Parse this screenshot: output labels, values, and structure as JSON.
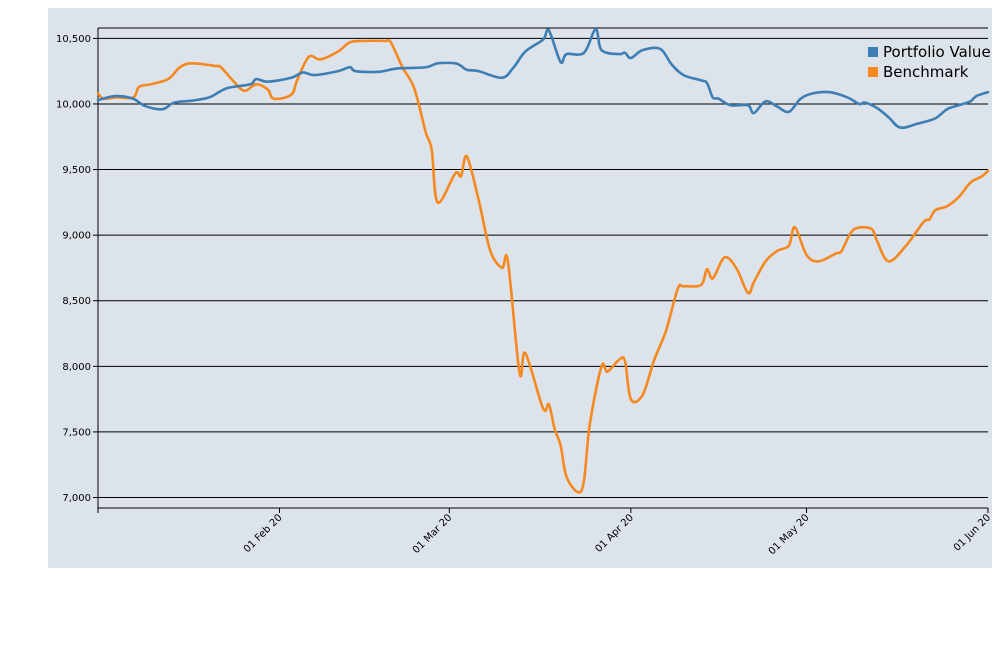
{
  "chart_data": {
    "type": "line",
    "x_type": "date",
    "ylim": [
      6920,
      10640
    ],
    "xlim": [
      "2020-01-01",
      "2020-06-01"
    ],
    "y_ticks": [
      7000,
      7500,
      8000,
      8500,
      9000,
      9500,
      10000,
      10500
    ],
    "y_tick_labels": [
      "7,000",
      "7,500",
      "8,000",
      "8,500",
      "9,000",
      "9,500",
      "10,000",
      "10,500"
    ],
    "x_ticks": [
      "2020-02-01",
      "2020-03-01",
      "2020-04-01",
      "2020-05-01",
      "2020-06-01"
    ],
    "x_tick_labels": [
      "01 Feb 20",
      "01 Mar 20",
      "01 Apr 20",
      "01 May 20",
      "01 Jun 20"
    ],
    "grid": "horizontal",
    "legend": "top-right",
    "colors": {
      "panel": "#dde3ea",
      "grid": "#000000"
    },
    "series": [
      {
        "name": "Portfolio Value",
        "color": "#3d7fb5",
        "points": [
          [
            "2020-01-01",
            10030
          ],
          [
            "2020-01-04",
            10060
          ],
          [
            "2020-01-07",
            10040
          ],
          [
            "2020-01-09",
            9985
          ],
          [
            "2020-01-12",
            9960
          ],
          [
            "2020-01-14",
            10010
          ],
          [
            "2020-01-17",
            10025
          ],
          [
            "2020-01-20",
            10050
          ],
          [
            "2020-01-23",
            10120
          ],
          [
            "2020-01-27",
            10150
          ],
          [
            "2020-01-28",
            10190
          ],
          [
            "2020-01-30",
            10170
          ],
          [
            "2020-02-03",
            10200
          ],
          [
            "2020-02-05",
            10240
          ],
          [
            "2020-02-07",
            10220
          ],
          [
            "2020-02-11",
            10250
          ],
          [
            "2020-02-13",
            10280
          ],
          [
            "2020-02-14",
            10250
          ],
          [
            "2020-02-18",
            10245
          ],
          [
            "2020-02-21",
            10270
          ],
          [
            "2020-02-26",
            10280
          ],
          [
            "2020-02-28",
            10310
          ],
          [
            "2020-03-02",
            10310
          ],
          [
            "2020-03-03",
            10290
          ],
          [
            "2020-03-04",
            10260
          ],
          [
            "2020-03-06",
            10250
          ],
          [
            "2020-03-10",
            10200
          ],
          [
            "2020-03-12",
            10280
          ],
          [
            "2020-03-14",
            10400
          ],
          [
            "2020-03-17",
            10490
          ],
          [
            "2020-03-18",
            10560
          ],
          [
            "2020-03-20",
            10320
          ],
          [
            "2020-03-21",
            10380
          ],
          [
            "2020-03-24",
            10390
          ],
          [
            "2020-03-26",
            10570
          ],
          [
            "2020-03-27",
            10410
          ],
          [
            "2020-03-30",
            10380
          ],
          [
            "2020-03-31",
            10390
          ],
          [
            "2020-04-01",
            10350
          ],
          [
            "2020-04-03",
            10410
          ],
          [
            "2020-04-06",
            10420
          ],
          [
            "2020-04-08",
            10300
          ],
          [
            "2020-04-10",
            10220
          ],
          [
            "2020-04-13",
            10180
          ],
          [
            "2020-04-14",
            10160
          ],
          [
            "2020-04-15",
            10050
          ],
          [
            "2020-04-16",
            10040
          ],
          [
            "2020-04-18",
            9990
          ],
          [
            "2020-04-21",
            9990
          ],
          [
            "2020-04-22",
            9930
          ],
          [
            "2020-04-24",
            10020
          ],
          [
            "2020-04-26",
            9980
          ],
          [
            "2020-04-28",
            9940
          ],
          [
            "2020-04-30",
            10040
          ],
          [
            "2020-05-02",
            10080
          ],
          [
            "2020-05-05",
            10090
          ],
          [
            "2020-05-08",
            10050
          ],
          [
            "2020-05-10",
            10000
          ],
          [
            "2020-05-11",
            10010
          ],
          [
            "2020-05-13",
            9970
          ],
          [
            "2020-05-15",
            9900
          ],
          [
            "2020-05-17",
            9820
          ],
          [
            "2020-05-20",
            9850
          ],
          [
            "2020-05-23",
            9890
          ],
          [
            "2020-05-25",
            9960
          ],
          [
            "2020-05-27",
            9990
          ],
          [
            "2020-05-29",
            10020
          ],
          [
            "2020-05-30",
            10060
          ],
          [
            "2020-06-01",
            10090
          ]
        ]
      },
      {
        "name": "Benchmark",
        "color": "#f5881f",
        "points": [
          [
            "2020-01-01",
            10080
          ],
          [
            "2020-01-02",
            10040
          ],
          [
            "2020-01-04",
            10050
          ],
          [
            "2020-01-07",
            10050
          ],
          [
            "2020-01-08",
            10130
          ],
          [
            "2020-01-10",
            10150
          ],
          [
            "2020-01-13",
            10190
          ],
          [
            "2020-01-15",
            10280
          ],
          [
            "2020-01-17",
            10310
          ],
          [
            "2020-01-21",
            10290
          ],
          [
            "2020-01-22",
            10280
          ],
          [
            "2020-01-24",
            10180
          ],
          [
            "2020-01-26",
            10100
          ],
          [
            "2020-01-28",
            10150
          ],
          [
            "2020-01-30",
            10110
          ],
          [
            "2020-01-31",
            10040
          ],
          [
            "2020-02-03",
            10070
          ],
          [
            "2020-02-04",
            10180
          ],
          [
            "2020-02-06",
            10360
          ],
          [
            "2020-02-08",
            10340
          ],
          [
            "2020-02-11",
            10400
          ],
          [
            "2020-02-13",
            10470
          ],
          [
            "2020-02-15",
            10480
          ],
          [
            "2020-02-19",
            10480
          ],
          [
            "2020-02-20",
            10470
          ],
          [
            "2020-02-22",
            10280
          ],
          [
            "2020-02-24",
            10120
          ],
          [
            "2020-02-26",
            9780
          ],
          [
            "2020-02-27",
            9650
          ],
          [
            "2020-02-28",
            9250
          ],
          [
            "2020-03-02",
            9470
          ],
          [
            "2020-03-03",
            9450
          ],
          [
            "2020-03-04",
            9600
          ],
          [
            "2020-03-06",
            9270
          ],
          [
            "2020-03-08",
            8880
          ],
          [
            "2020-03-10",
            8750
          ],
          [
            "2020-03-11",
            8800
          ],
          [
            "2020-03-13",
            7950
          ],
          [
            "2020-03-14",
            8100
          ],
          [
            "2020-03-17",
            7680
          ],
          [
            "2020-03-18",
            7710
          ],
          [
            "2020-03-19",
            7520
          ],
          [
            "2020-03-20",
            7400
          ],
          [
            "2020-03-21",
            7160
          ],
          [
            "2020-03-23",
            7040
          ],
          [
            "2020-03-24",
            7130
          ],
          [
            "2020-03-25",
            7560
          ],
          [
            "2020-03-27",
            8000
          ],
          [
            "2020-03-28",
            7960
          ],
          [
            "2020-03-30",
            8050
          ],
          [
            "2020-03-31",
            8040
          ],
          [
            "2020-04-01",
            7750
          ],
          [
            "2020-04-03",
            7780
          ],
          [
            "2020-04-05",
            8050
          ],
          [
            "2020-04-07",
            8270
          ],
          [
            "2020-04-09",
            8590
          ],
          [
            "2020-04-10",
            8610
          ],
          [
            "2020-04-13",
            8620
          ],
          [
            "2020-04-14",
            8740
          ],
          [
            "2020-04-15",
            8670
          ],
          [
            "2020-04-17",
            8830
          ],
          [
            "2020-04-19",
            8750
          ],
          [
            "2020-04-21",
            8560
          ],
          [
            "2020-04-22",
            8640
          ],
          [
            "2020-04-24",
            8800
          ],
          [
            "2020-04-26",
            8880
          ],
          [
            "2020-04-28",
            8920
          ],
          [
            "2020-04-29",
            9060
          ],
          [
            "2020-05-01",
            8850
          ],
          [
            "2020-05-03",
            8800
          ],
          [
            "2020-05-06",
            8860
          ],
          [
            "2020-05-07",
            8880
          ],
          [
            "2020-05-09",
            9040
          ],
          [
            "2020-05-12",
            9050
          ],
          [
            "2020-05-13",
            8960
          ],
          [
            "2020-05-15",
            8800
          ],
          [
            "2020-05-18",
            8920
          ],
          [
            "2020-05-21",
            9100
          ],
          [
            "2020-05-22",
            9120
          ],
          [
            "2020-05-23",
            9190
          ],
          [
            "2020-05-25",
            9220
          ],
          [
            "2020-05-27",
            9290
          ],
          [
            "2020-05-29",
            9400
          ],
          [
            "2020-05-31",
            9450
          ],
          [
            "2020-06-01",
            9490
          ]
        ]
      }
    ]
  }
}
